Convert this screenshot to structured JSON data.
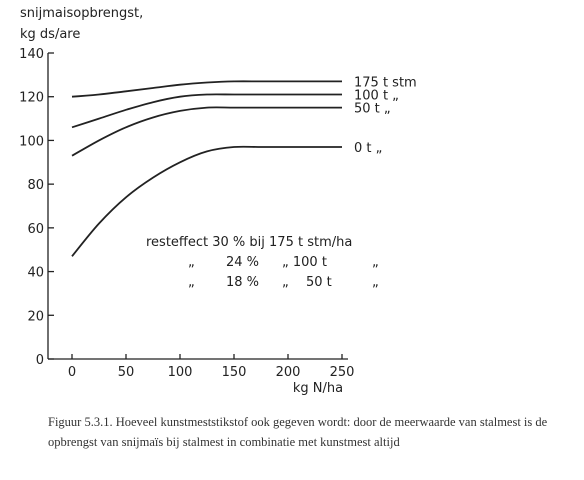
{
  "chart_data": {
    "type": "line",
    "ylabel_lines": [
      "snijmaisopbrengst,",
      "kg ds/are"
    ],
    "xlabel": "kg N/ha",
    "xlim": [
      0,
      250
    ],
    "ylim": [
      0,
      140
    ],
    "xticks": [
      0,
      50,
      100,
      150,
      200,
      250
    ],
    "yticks": [
      0,
      20,
      40,
      60,
      80,
      100,
      120,
      140
    ],
    "grid": false,
    "series": [
      {
        "label": "175 t stm",
        "x": [
          0,
          25,
          50,
          75,
          100,
          125,
          150,
          175,
          200,
          250
        ],
        "y": [
          120,
          121,
          122.5,
          124,
          125.5,
          126.5,
          127,
          127,
          127,
          127
        ]
      },
      {
        "label": "100 t „",
        "x": [
          0,
          25,
          50,
          75,
          100,
          125,
          150,
          175,
          200,
          250
        ],
        "y": [
          106,
          110,
          114,
          117.5,
          120,
          121,
          121,
          121,
          121,
          121
        ]
      },
      {
        "label": "50 t „",
        "x": [
          0,
          25,
          50,
          75,
          100,
          125,
          150,
          175,
          200,
          250
        ],
        "y": [
          93,
          100,
          106,
          110.5,
          113.5,
          115,
          115,
          115,
          115,
          115
        ]
      },
      {
        "label": "0 t „",
        "x": [
          0,
          25,
          50,
          75,
          100,
          125,
          150,
          175,
          200,
          250
        ],
        "y": [
          47,
          62,
          74,
          83,
          90,
          95,
          97,
          97,
          97,
          97
        ]
      }
    ],
    "annotations": [
      [
        "resteffect 30 % bij 175 t stm/ha"
      ],
      [
        "„",
        "24 %",
        "„ 100 t",
        "„"
      ],
      [
        "„",
        "18 %",
        "„",
        "50 t",
        "„"
      ]
    ]
  },
  "caption": "Figuur 5.3.1. Hoeveel kunstmeststikstof ook gegeven wordt: door de meerwaarde van stalmest is de opbrengst van snijmaïs bij stalmest in combinatie met kunstmest altijd"
}
